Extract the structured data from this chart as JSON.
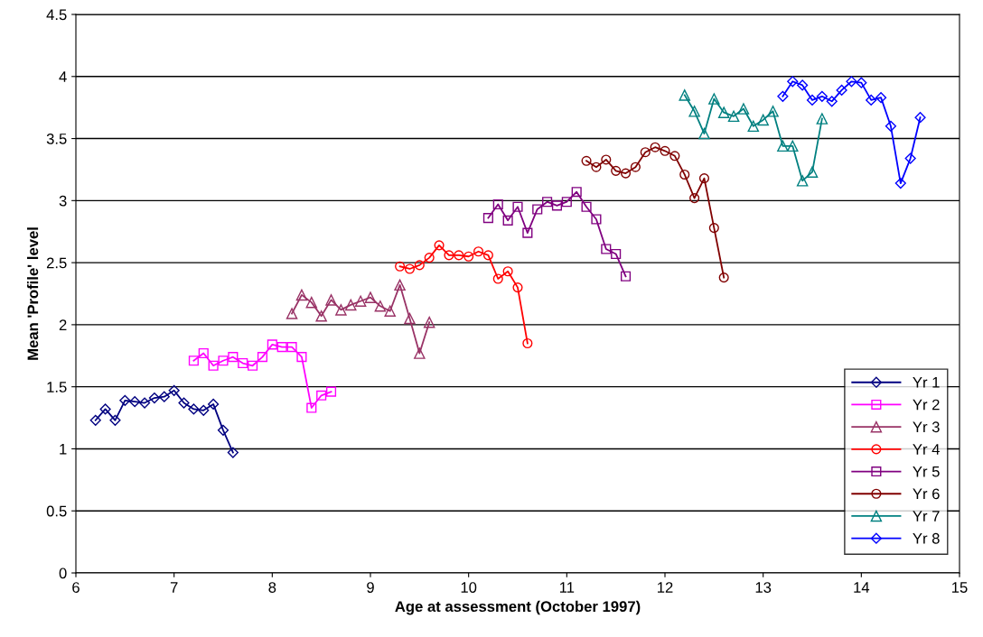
{
  "chart_data": {
    "type": "line",
    "xlabel": "Age at assessment (October 1997)",
    "ylabel": "Mean 'Profile' level",
    "xlim": [
      6,
      15
    ],
    "xticks": [
      6,
      7,
      8,
      9,
      10,
      11,
      12,
      13,
      14,
      15
    ],
    "ylim": [
      0,
      4.5
    ],
    "yticks": [
      0,
      0.5,
      1,
      1.5,
      2,
      2.5,
      3,
      3.5,
      4,
      4.5
    ],
    "grid": "y",
    "legend": "bottom right",
    "line_style": "solid",
    "series": [
      {
        "name": "Yr 1",
        "color": "#000080",
        "marker": "diamond",
        "x": [
          6.2,
          6.3,
          6.4,
          6.5,
          6.6,
          6.7,
          6.8,
          6.9,
          7.0,
          7.1,
          7.2,
          7.3,
          7.4,
          7.5,
          7.6
        ],
        "values": [
          1.23,
          1.32,
          1.23,
          1.39,
          1.38,
          1.37,
          1.41,
          1.42,
          1.47,
          1.37,
          1.32,
          1.31,
          1.36,
          1.15,
          0.97
        ]
      },
      {
        "name": "Yr 2",
        "color": "#ff00ff",
        "marker": "square",
        "x": [
          7.2,
          7.3,
          7.4,
          7.5,
          7.6,
          7.7,
          7.8,
          7.9,
          8.0,
          8.1,
          8.2,
          8.3,
          8.4,
          8.5,
          8.6
        ],
        "values": [
          1.71,
          1.77,
          1.67,
          1.71,
          1.74,
          1.69,
          1.67,
          1.74,
          1.84,
          1.82,
          1.82,
          1.74,
          1.33,
          1.43,
          1.46
        ]
      },
      {
        "name": "Yr 3",
        "color": "#993366",
        "marker": "triangle",
        "x": [
          8.2,
          8.3,
          8.4,
          8.5,
          8.6,
          8.7,
          8.8,
          8.9,
          9.0,
          9.1,
          9.2,
          9.3,
          9.4,
          9.5,
          9.6
        ],
        "values": [
          2.09,
          2.24,
          2.18,
          2.07,
          2.2,
          2.12,
          2.16,
          2.19,
          2.22,
          2.15,
          2.11,
          2.32,
          2.05,
          1.77,
          2.02
        ]
      },
      {
        "name": "Yr 4",
        "color": "#ff0000",
        "marker": "circle",
        "x": [
          9.3,
          9.4,
          9.5,
          9.6,
          9.7,
          9.8,
          9.9,
          10.0,
          10.1,
          10.2,
          10.3,
          10.4,
          10.5,
          10.6
        ],
        "values": [
          2.47,
          2.45,
          2.48,
          2.54,
          2.64,
          2.56,
          2.56,
          2.55,
          2.59,
          2.56,
          2.37,
          2.43,
          2.3,
          1.85
        ]
      },
      {
        "name": "Yr 5",
        "color": "#800080",
        "marker": "square",
        "x": [
          10.2,
          10.3,
          10.4,
          10.5,
          10.6,
          10.7,
          10.8,
          10.9,
          11.0,
          11.1,
          11.2,
          11.3,
          11.4,
          11.5,
          11.6
        ],
        "values": [
          2.86,
          2.97,
          2.84,
          2.95,
          2.74,
          2.93,
          2.99,
          2.96,
          2.99,
          3.07,
          2.95,
          2.85,
          2.61,
          2.57,
          2.39
        ]
      },
      {
        "name": "Yr 6",
        "color": "#800000",
        "marker": "circle",
        "x": [
          11.2,
          11.3,
          11.4,
          11.5,
          11.6,
          11.7,
          11.8,
          11.9,
          12.0,
          12.1,
          12.2,
          12.3,
          12.4,
          12.5,
          12.6
        ],
        "values": [
          3.32,
          3.27,
          3.33,
          3.24,
          3.22,
          3.27,
          3.39,
          3.43,
          3.4,
          3.36,
          3.21,
          3.02,
          3.18,
          2.78,
          2.38
        ]
      },
      {
        "name": "Yr 7",
        "color": "#008080",
        "marker": "triangle",
        "x": [
          12.2,
          12.3,
          12.4,
          12.5,
          12.6,
          12.7,
          12.8,
          12.9,
          13.0,
          13.1,
          13.2,
          13.3,
          13.4,
          13.5,
          13.6
        ],
        "values": [
          3.85,
          3.72,
          3.54,
          3.82,
          3.71,
          3.68,
          3.74,
          3.6,
          3.65,
          3.72,
          3.44,
          3.44,
          3.16,
          3.23,
          3.66
        ]
      },
      {
        "name": "Yr 8",
        "color": "#0000ff",
        "marker": "diamond",
        "x": [
          13.2,
          13.3,
          13.4,
          13.5,
          13.6,
          13.7,
          13.8,
          13.9,
          14.0,
          14.1,
          14.2,
          14.3,
          14.4,
          14.5,
          14.6
        ],
        "values": [
          3.84,
          3.96,
          3.93,
          3.81,
          3.84,
          3.8,
          3.89,
          3.96,
          3.95,
          3.81,
          3.83,
          3.6,
          3.14,
          3.34,
          3.67
        ]
      }
    ]
  }
}
